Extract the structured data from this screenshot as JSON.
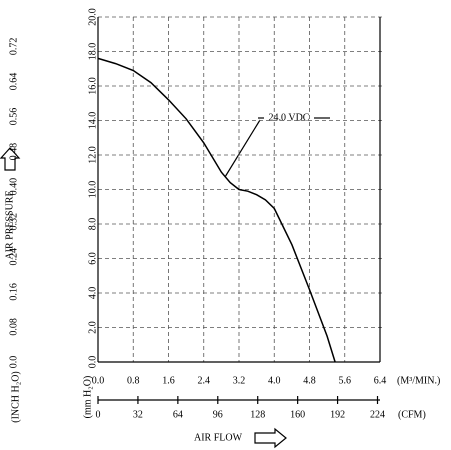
{
  "chart_data": {
    "type": "line",
    "x_label": "AIR FLOW",
    "y_label": "AIR PRESSURE",
    "x_unit": "(M³/MIN.)",
    "x2_unit": "(CFM)",
    "y_unit": "(mm H₂O)",
    "y2_unit": "(INCH H₂O)",
    "annotation": "24.0 VDC",
    "x": [
      0,
      0.4,
      0.8,
      1.2,
      1.6,
      2.0,
      2.4,
      2.8,
      3.0,
      3.2,
      3.4,
      3.6,
      3.8,
      4.0,
      4.4,
      4.8,
      5.2,
      5.38
    ],
    "series": [
      {
        "color": "#000000",
        "values": [
          17.6,
          17.3,
          16.9,
          16.2,
          15.2,
          14.1,
          12.7,
          11.0,
          10.4,
          10.0,
          9.9,
          9.7,
          9.4,
          8.9,
          6.8,
          4.2,
          1.5,
          0
        ]
      }
    ],
    "xlim": [
      0,
      6.4
    ],
    "xticks": [
      {
        "value": 0,
        "label": "0.0"
      },
      0.8,
      1.6,
      2.4,
      3.2,
      {
        "value": 4.0,
        "label": "4.0"
      },
      4.8,
      5.6,
      6.4
    ],
    "x2lim": [
      0,
      226
    ],
    "x2ticks": [
      0,
      32,
      64,
      96,
      128,
      160,
      192,
      224
    ],
    "ylim": [
      0,
      20
    ],
    "yticks": [
      {
        "value": 0,
        "label": "0.0"
      },
      {
        "value": 2,
        "label": "2.0"
      },
      {
        "value": 4,
        "label": "4.0"
      },
      {
        "value": 6,
        "label": "6.0"
      },
      {
        "value": 8,
        "label": "8.0"
      },
      {
        "value": 10,
        "label": "10.0"
      },
      {
        "value": 12,
        "label": "12.0"
      },
      {
        "value": 14,
        "label": "14.0"
      },
      {
        "value": 16,
        "label": "16.0"
      },
      {
        "value": 18,
        "label": "18.0"
      },
      {
        "value": 20,
        "label": "20.0"
      }
    ],
    "y2lim": [
      0,
      0.787
    ],
    "y2ticks": [
      {
        "value": 0,
        "label": "0.0"
      },
      0.08,
      0.16,
      0.24,
      0.32,
      {
        "value": 0.4,
        "label": "0.40"
      },
      0.48,
      0.56,
      0.64,
      0.72
    ],
    "grid": true
  }
}
